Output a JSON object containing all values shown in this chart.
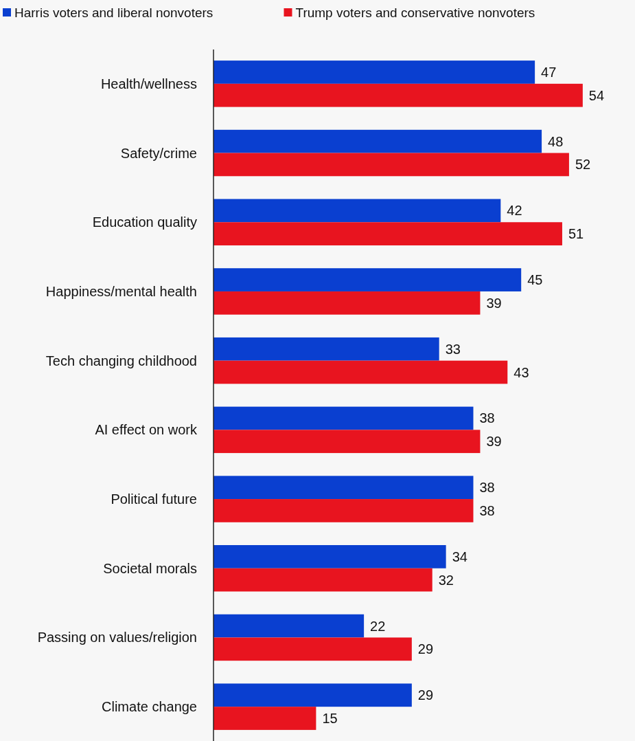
{
  "chart_data": {
    "type": "bar",
    "orientation": "horizontal",
    "categories": [
      "Health/wellness",
      "Safety/crime",
      "Education quality",
      "Happiness/mental health",
      "Tech changing childhood",
      "AI effect on work",
      "Political future",
      "Societal morals",
      "Passing on values/religion",
      "Climate change"
    ],
    "series": [
      {
        "name": "Harris voters and liberal nonvoters",
        "color": "#0a3fd0",
        "values": [
          47,
          48,
          42,
          45,
          33,
          38,
          38,
          34,
          22,
          29
        ]
      },
      {
        "name": "Trump voters and conservative nonvoters",
        "color": "#e8141f",
        "values": [
          54,
          52,
          51,
          39,
          43,
          39,
          38,
          32,
          29,
          15
        ]
      }
    ],
    "data_labels": true,
    "legend": "top",
    "grid": false
  }
}
